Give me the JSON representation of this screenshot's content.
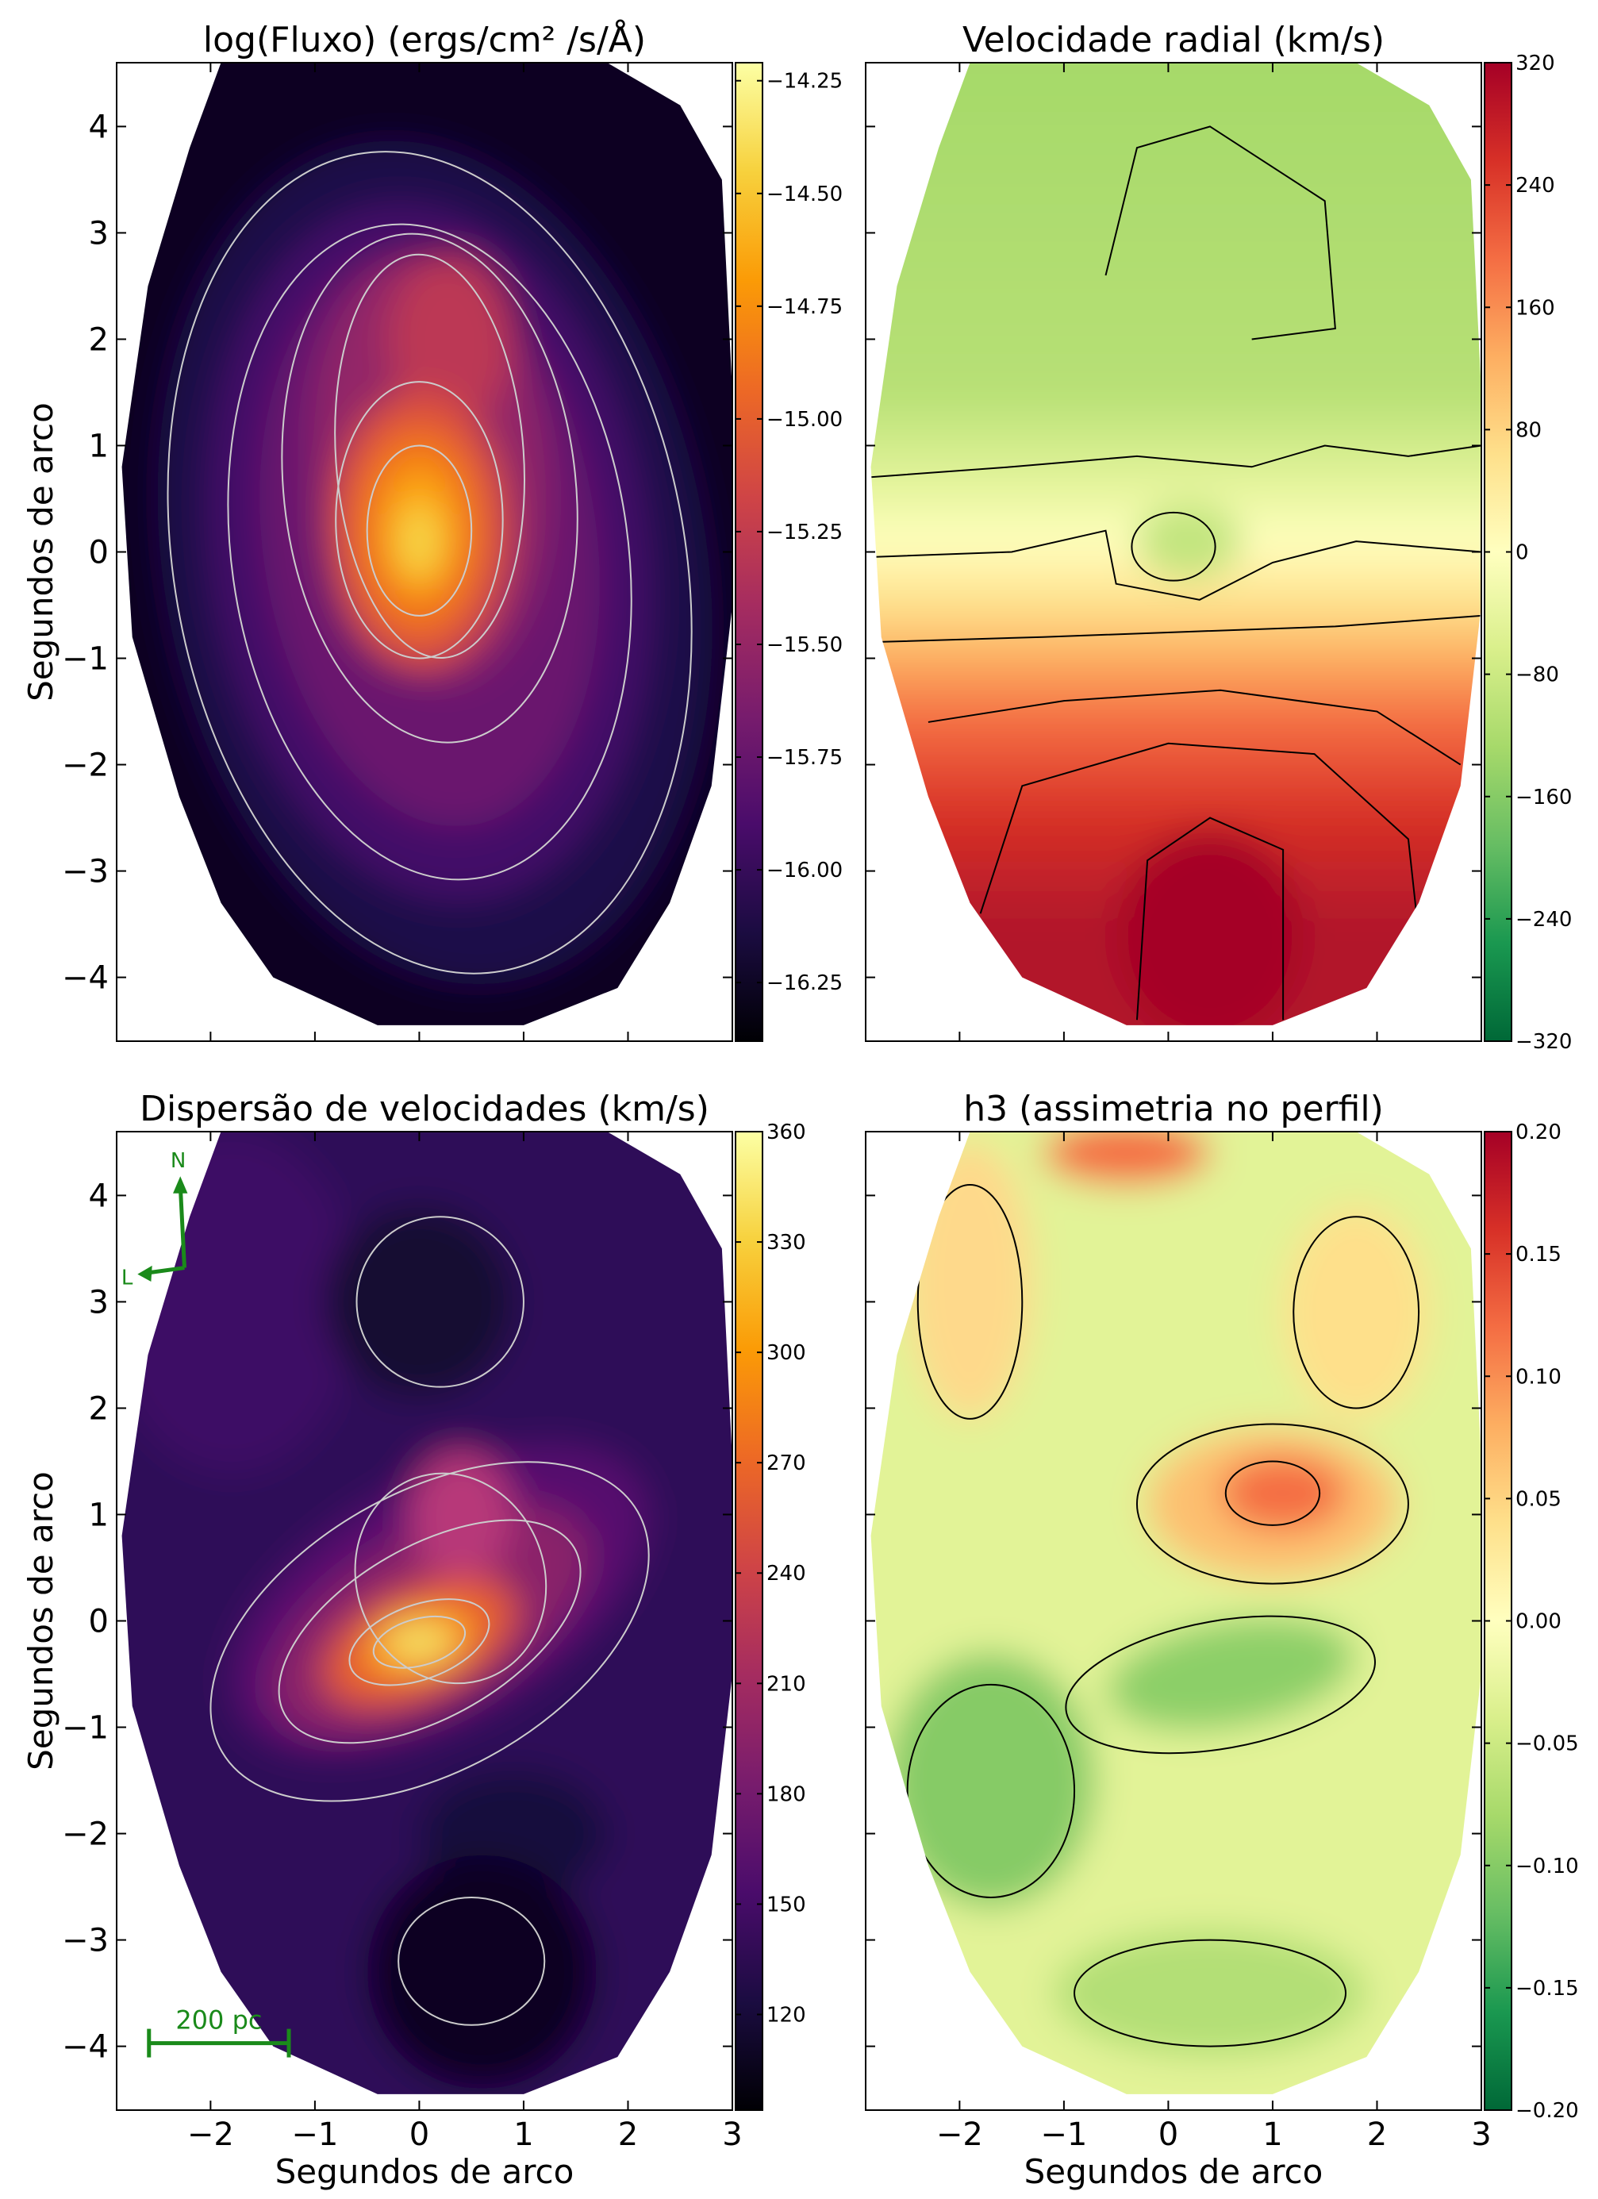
{
  "chart_data": [
    {
      "type": "heatmap",
      "title": "log(Fluxo) (ergs/cm² /s/Å)",
      "colormap": "inferno",
      "xlim": [
        -2.9,
        3.0
      ],
      "ylim": [
        -4.6,
        4.6
      ],
      "ylabel": "Segundos de arco",
      "yticks": [
        {
          "value": -4,
          "label": "−4"
        },
        {
          "value": -3,
          "label": "−3"
        },
        {
          "value": -2,
          "label": "−2"
        },
        {
          "value": -1,
          "label": "−1"
        },
        0,
        1,
        2,
        3,
        4
      ],
      "clim": [
        -16.38,
        -14.21
      ],
      "cticks": [
        {
          "value": -14.25,
          "label": "−14.25"
        },
        {
          "value": -14.5,
          "label": "−14.50"
        },
        {
          "value": -14.75,
          "label": "−14.75"
        },
        {
          "value": -15,
          "label": "−15.00"
        },
        {
          "value": -15.25,
          "label": "−15.25"
        },
        {
          "value": -15.5,
          "label": "−15.50"
        },
        {
          "value": -15.75,
          "label": "−15.75"
        },
        {
          "value": -16,
          "label": "−16.00"
        },
        {
          "value": -16.25,
          "label": "−16.25"
        }
      ]
    },
    {
      "type": "heatmap",
      "title": "Velocidade radial (km/s)",
      "colormap": "RdYlGn_r",
      "xlim": [
        -2.9,
        3.0
      ],
      "ylim": [
        -4.6,
        4.6
      ],
      "clim": [
        -320,
        320
      ],
      "cticks": [
        {
          "value": -320,
          "label": "−320"
        },
        {
          "value": -240,
          "label": "−240"
        },
        {
          "value": -160,
          "label": "−160"
        },
        {
          "value": -80,
          "label": "−80"
        },
        0,
        80,
        160,
        240,
        320
      ]
    },
    {
      "type": "heatmap",
      "title": "Dispersão de velocidades (km/s)",
      "colormap": "inferno",
      "xlim": [
        -2.9,
        3.0
      ],
      "ylim": [
        -4.6,
        4.6
      ],
      "xlabel": "Segundos de arco",
      "ylabel": "Segundos de arco",
      "xticks": [
        {
          "value": -2,
          "label": "−2"
        },
        {
          "value": -1,
          "label": "−1"
        },
        0,
        1,
        2,
        3
      ],
      "yticks": [
        {
          "value": -4,
          "label": "−4"
        },
        {
          "value": -3,
          "label": "−3"
        },
        {
          "value": -2,
          "label": "−2"
        },
        {
          "value": -1,
          "label": "−1"
        },
        0,
        1,
        2,
        3,
        4
      ],
      "clim": [
        94,
        360
      ],
      "cticks": [
        120,
        150,
        180,
        210,
        240,
        270,
        300,
        330,
        360
      ],
      "annotations": {
        "north": "N",
        "east": "L",
        "scale_bar": "200 pc"
      }
    },
    {
      "type": "heatmap",
      "title": "h3 (assimetria no perfil)",
      "colormap": "RdYlGn_r",
      "xlim": [
        -2.9,
        3.0
      ],
      "ylim": [
        -4.6,
        4.6
      ],
      "xlabel": "Segundos de arco",
      "xticks": [
        {
          "value": -2,
          "label": "−2"
        },
        {
          "value": -1,
          "label": "−1"
        },
        0,
        1,
        2,
        3
      ],
      "clim": [
        -0.2,
        0.2
      ],
      "cticks": [
        {
          "value": -0.2,
          "label": "−0.20"
        },
        {
          "value": -0.15,
          "label": "−0.15"
        },
        {
          "value": -0.1,
          "label": "−0.10"
        },
        {
          "value": -0.05,
          "label": "−0.05"
        },
        {
          "value": 0,
          "label": "0.00"
        },
        {
          "value": 0.05,
          "label": "0.05"
        },
        {
          "value": 0.1,
          "label": "0.10"
        },
        {
          "value": 0.15,
          "label": "0.15"
        },
        {
          "value": 0.2,
          "label": "0.20"
        }
      ]
    }
  ]
}
